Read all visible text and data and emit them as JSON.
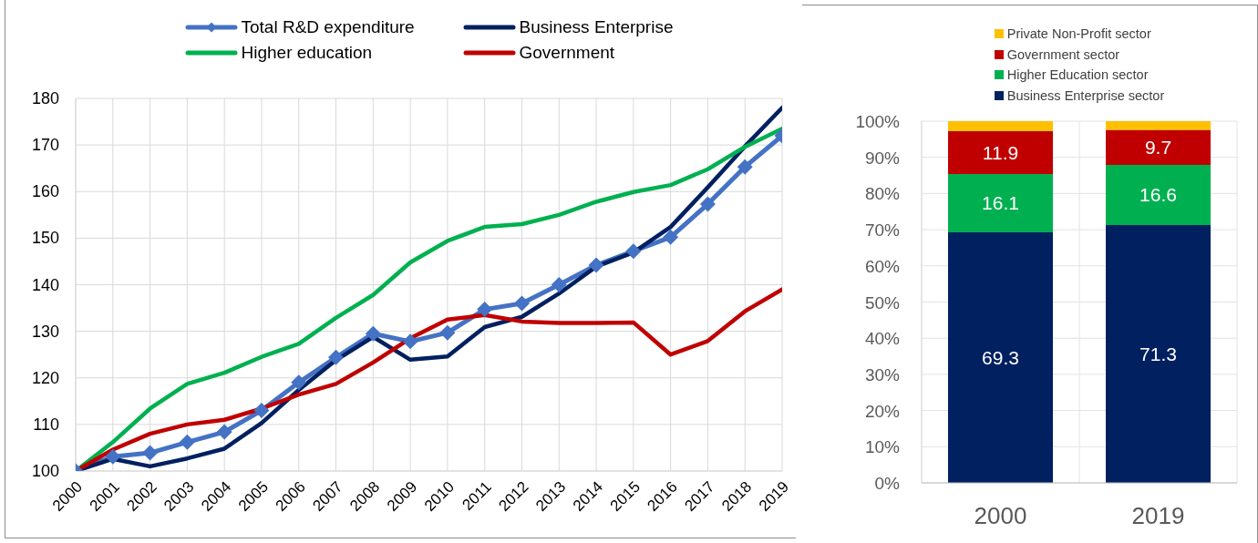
{
  "chart_data": [
    {
      "type": "line",
      "categories": [
        "2000",
        "2001",
        "2002",
        "2003",
        "2004",
        "2005",
        "2006",
        "2007",
        "2008",
        "2009",
        "2010",
        "2011",
        "2012",
        "2013",
        "2014",
        "2015",
        "2016",
        "2017",
        "2018",
        "2019"
      ],
      "series": [
        {
          "name": "Total R&D expenditure",
          "color": "#4472c4",
          "marker": "diamond",
          "values": [
            100,
            103.1,
            103.9,
            106.2,
            108.4,
            113,
            119,
            124.4,
            129.5,
            127.8,
            129.7,
            134.7,
            136,
            140,
            144.2,
            147.2,
            150.2,
            157.3,
            165.3,
            172
          ]
        },
        {
          "name": "Business Enterprise",
          "color": "#002060",
          "values": [
            100,
            102.6,
            101,
            102.7,
            104.8,
            110.3,
            117.4,
            123.8,
            128.8,
            123.9,
            124.6,
            130.9,
            133.1,
            138.1,
            143.9,
            146.9,
            152.4,
            160.9,
            169.7,
            178
          ]
        },
        {
          "name": "Higher education",
          "color": "#00b050",
          "values": [
            100,
            106.2,
            113.4,
            118.7,
            121.1,
            124.5,
            127.3,
            132.9,
            137.8,
            144.8,
            149.4,
            152.4,
            153,
            155,
            157.8,
            159.9,
            161.4,
            164.8,
            169.6,
            173.5
          ]
        },
        {
          "name": "Government",
          "color": "#c00000",
          "values": [
            100,
            104.6,
            108,
            110,
            111,
            113.4,
            116.4,
            118.7,
            123.3,
            128.5,
            132.5,
            133.5,
            132.1,
            131.8,
            131.8,
            131.9,
            125,
            127.9,
            134.3,
            139
          ]
        }
      ],
      "ylim": [
        100,
        180
      ],
      "yticks": [
        100,
        110,
        120,
        130,
        140,
        150,
        160,
        170,
        180
      ],
      "grid": true,
      "legend": "top"
    },
    {
      "type": "bar",
      "stacked": true,
      "categories": [
        "2000",
        "2019"
      ],
      "series": [
        {
          "name": "Business Enterprise sector",
          "color": "#002060",
          "values": [
            69.3,
            71.3
          ],
          "value_labels": [
            "69.3",
            "71.3"
          ]
        },
        {
          "name": "Higher Education sector",
          "color": "#00b050",
          "values": [
            16.1,
            16.6
          ],
          "value_labels": [
            "16.1",
            "16.6"
          ]
        },
        {
          "name": "Government sector",
          "color": "#c00000",
          "values": [
            11.9,
            9.7
          ],
          "value_labels": [
            "11.9",
            "9.7"
          ]
        },
        {
          "name": "Private Non-Profit sector",
          "color": "#ffc000",
          "values": [
            2.7,
            2.4
          ]
        }
      ],
      "ylim": [
        0,
        100
      ],
      "yticks": [
        {
          "value": 0,
          "label": "0%"
        },
        {
          "value": 10,
          "label": "10%"
        },
        {
          "value": 20,
          "label": "20%"
        },
        {
          "value": 30,
          "label": "30%"
        },
        {
          "value": 40,
          "label": "40%"
        },
        {
          "value": 50,
          "label": "50%"
        },
        {
          "value": 60,
          "label": "60%"
        },
        {
          "value": 70,
          "label": "70%"
        },
        {
          "value": 80,
          "label": "80%"
        },
        {
          "value": 90,
          "label": "90%"
        },
        {
          "value": 100,
          "label": "100%"
        }
      ],
      "grid": true,
      "legend": "top"
    }
  ]
}
